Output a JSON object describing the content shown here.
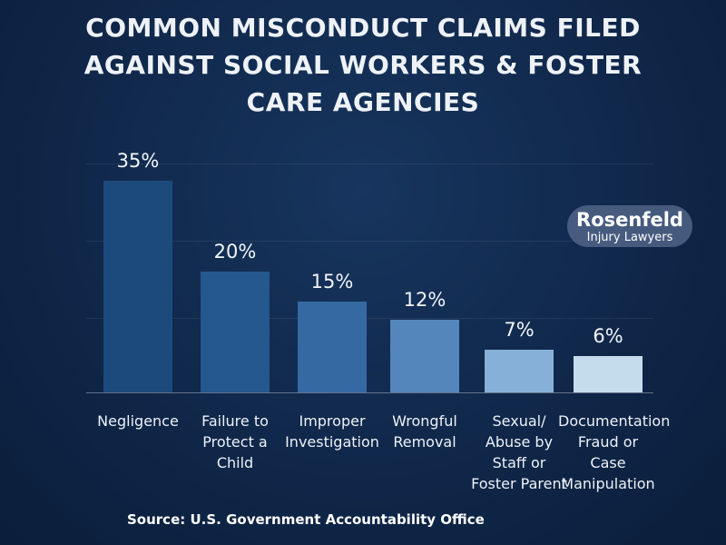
{
  "chart_data": {
    "type": "bar",
    "title": "COMMON MISCONDUCT CLAIMS FILED AGAINST SOCIAL WORKERS & FOSTER CARE AGENCIES",
    "categories": [
      "Negligence",
      "Failure to Protect a Child",
      "Improper Investigation",
      "Wrongful Removal",
      "Sexual/ Abuse by Staff or Foster Parent",
      "Documentation Fraud or Case Manipulation"
    ],
    "values": [
      35,
      20,
      15,
      12,
      7,
      6
    ],
    "value_labels": [
      "35%",
      "20%",
      "15%",
      "12%",
      "7%",
      "6%"
    ],
    "colors": [
      "#1d4a7c",
      "#24588e",
      "#3569a2",
      "#5486bb",
      "#86b0d7",
      "#c5dcec"
    ],
    "source": "Source: U.S. Government Accountability Office"
  },
  "logo": {
    "name": "Rosenfeld",
    "tagline": "Injury Lawyers"
  }
}
